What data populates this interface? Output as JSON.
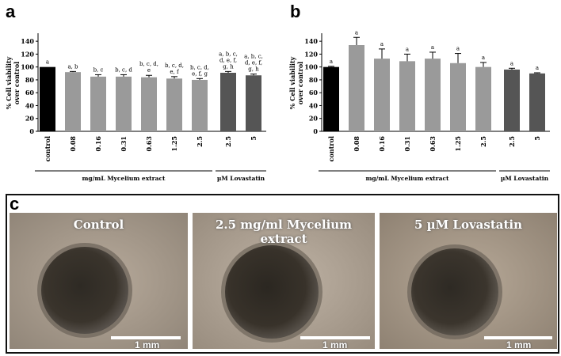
{
  "panels": {
    "a": "a",
    "b": "b",
    "c": "c"
  },
  "chart_data": [
    {
      "type": "bar",
      "panel": "a",
      "ylabel": "% Cell viability over control",
      "ylim": [
        0,
        150
      ],
      "yticks": [
        0,
        20,
        40,
        60,
        80,
        100,
        120,
        140
      ],
      "categories": [
        "control",
        "0.08",
        "0.16",
        "0.31",
        "0.63",
        "1.25",
        "2.5",
        "2.5",
        "5"
      ],
      "values": [
        100,
        92,
        85,
        85,
        84,
        82,
        80,
        91,
        87
      ],
      "errors": [
        0,
        1,
        3,
        3,
        3,
        3,
        2,
        2,
        2
      ],
      "colors": [
        "#000000",
        "#9a9a9a",
        "#9a9a9a",
        "#9a9a9a",
        "#9a9a9a",
        "#9a9a9a",
        "#9a9a9a",
        "#555555",
        "#555555"
      ],
      "letters": [
        "a",
        "a, b",
        "b, c",
        "b, c, d",
        "b, c, d, e",
        "b, c, d, e, f",
        "b, c, d, e, f, g",
        "a, b, c, d, e, f, g, h",
        "a, b, c, d, e, f, g, h"
      ],
      "groups": [
        {
          "label": "mg/mL  Mycelium extract",
          "from": 0,
          "to": 6
        },
        {
          "label": "µM Lovastatin",
          "from": 7,
          "to": 8
        }
      ]
    },
    {
      "type": "bar",
      "panel": "b",
      "ylabel": "% Cell viability over control",
      "ylim": [
        0,
        150
      ],
      "yticks": [
        0,
        20,
        40,
        60,
        80,
        100,
        120,
        140
      ],
      "categories": [
        "control",
        "0.08",
        "0.16",
        "0.31",
        "0.63",
        "1.25",
        "2.5",
        "2.5",
        "5"
      ],
      "values": [
        100,
        134,
        113,
        109,
        113,
        106,
        100,
        96,
        90
      ],
      "errors": [
        1,
        12,
        15,
        11,
        10,
        15,
        7,
        2,
        1
      ],
      "colors": [
        "#000000",
        "#9a9a9a",
        "#9a9a9a",
        "#9a9a9a",
        "#9a9a9a",
        "#9a9a9a",
        "#9a9a9a",
        "#555555",
        "#555555"
      ],
      "letters": [
        "a",
        "a",
        "a",
        "a",
        "a",
        "a",
        "a",
        "a",
        "a"
      ],
      "groups": [
        {
          "label": "mg/mL Mycelium extract",
          "from": 0,
          "to": 6
        },
        {
          "label": "µM Lovastatin",
          "from": 7,
          "to": 8
        }
      ]
    }
  ],
  "micrographs": [
    {
      "title": "Control",
      "scale": "1 mm"
    },
    {
      "title": "2.5 mg/ml Mycelium extract",
      "scale": "1 mm"
    },
    {
      "title": "5 µM Lovastatin",
      "scale": "1 mm"
    }
  ]
}
